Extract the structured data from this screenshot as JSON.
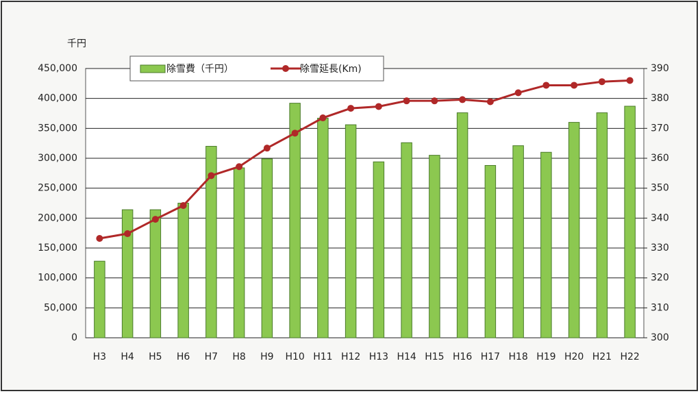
{
  "chart_data": {
    "type": "bar_line",
    "y_unit_label": "千円",
    "categories": [
      "H3",
      "H4",
      "H5",
      "H6",
      "H7",
      "H8",
      "H9",
      "H10",
      "H11",
      "H12",
      "H13",
      "H14",
      "H15",
      "H16",
      "H17",
      "H18",
      "H19",
      "H20",
      "H21",
      "H22"
    ],
    "series": [
      {
        "name": "除雪費（千円）",
        "type": "bar",
        "color": "#8cc850",
        "axis": "y",
        "values": [
          128000,
          214000,
          214000,
          225000,
          320000,
          284000,
          299000,
          392000,
          367000,
          356000,
          294000,
          326000,
          305000,
          376000,
          288000,
          321000,
          310000,
          360000,
          376000,
          387000
        ]
      },
      {
        "name": "除雪延長(Km)",
        "type": "line",
        "color": "#b02828",
        "axis": "y2",
        "values": [
          333.2,
          334.8,
          339.6,
          344.2,
          354.2,
          357.2,
          363.4,
          368.4,
          373.5,
          376.7,
          377.3,
          379.2,
          379.2,
          379.6,
          378.9,
          381.9,
          384.4,
          384.4,
          385.6,
          386
        ]
      }
    ],
    "ylim": [
      0,
      450000
    ],
    "yticks": [
      0,
      {
        "value": 50000,
        "label": "50,000"
      },
      {
        "value": 100000,
        "label": "100,000"
      },
      {
        "value": 150000,
        "label": "150,000"
      },
      {
        "value": 200000,
        "label": "200,000"
      },
      {
        "value": 250000,
        "label": "250,000"
      },
      {
        "value": 300000,
        "label": "300,000"
      },
      {
        "value": 350000,
        "label": "350,000"
      },
      {
        "value": 400000,
        "label": "400,000"
      },
      {
        "value": 450000,
        "label": "450,000"
      }
    ],
    "y2lim": [
      300,
      390
    ],
    "y2ticks": [
      300,
      310,
      320,
      330,
      340,
      350,
      360,
      370,
      380,
      390
    ],
    "grid": true
  }
}
